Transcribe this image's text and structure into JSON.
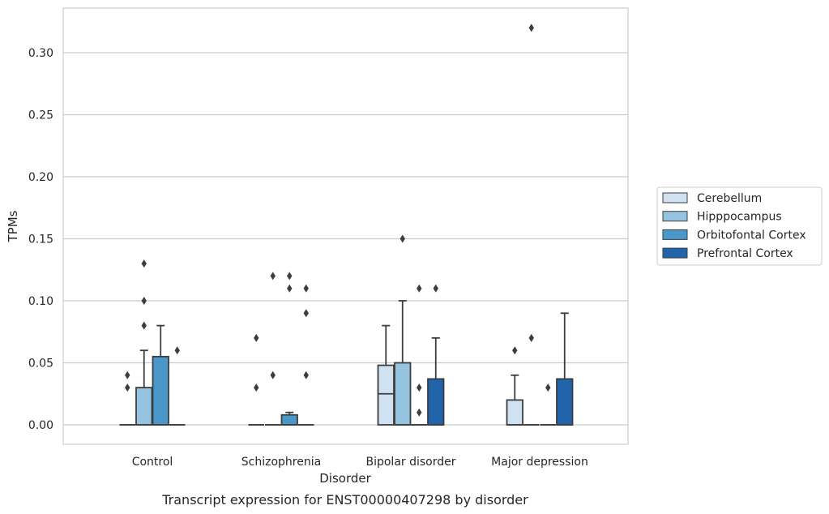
{
  "chart_data": {
    "type": "boxplot",
    "caption": "Transcript expression for ENST00000407298 by disorder",
    "xlabel": "Disorder",
    "ylabel": "TPMs",
    "ylim": [
      -0.016,
      0.337
    ],
    "yticks": [
      "0.00",
      "0.05",
      "0.10",
      "0.15",
      "0.20",
      "0.25",
      "0.30"
    ],
    "ytick_values": [
      0,
      0.05,
      0.1,
      0.15,
      0.2,
      0.25,
      0.3
    ],
    "grid": "horizontal",
    "legend_position": "right",
    "categories": [
      "Control",
      "Schizophrenia",
      "Bipolar disorder",
      "Major depression"
    ],
    "series": [
      {
        "name": "Cerebellum",
        "color": "#d0e1f2",
        "boxes": [
          {
            "q1": 0,
            "median": 0,
            "q3": 0,
            "whisker_low": 0,
            "whisker_high": 0,
            "outliers": [
              0.03,
              0.04
            ]
          },
          {
            "q1": 0,
            "median": 0,
            "q3": 0,
            "whisker_low": 0,
            "whisker_high": 0,
            "outliers": [
              0.03,
              0.07
            ]
          },
          {
            "q1": 0,
            "median": 0.025,
            "q3": 0.048,
            "whisker_low": 0,
            "whisker_high": 0.08,
            "outliers": []
          },
          {
            "q1": 0,
            "median": 0,
            "q3": 0.02,
            "whisker_low": 0,
            "whisker_high": 0.04,
            "outliers": [
              0.06
            ]
          }
        ]
      },
      {
        "name": "Hipppocampus",
        "color": "#94c4df",
        "boxes": [
          {
            "q1": 0,
            "median": 0,
            "q3": 0.03,
            "whisker_low": 0,
            "whisker_high": 0.06,
            "outliers": [
              0.08,
              0.1,
              0.13
            ]
          },
          {
            "q1": 0,
            "median": 0,
            "q3": 0,
            "whisker_low": 0,
            "whisker_high": 0,
            "outliers": [
              0.04,
              0.12
            ]
          },
          {
            "q1": 0,
            "median": 0,
            "q3": 0.05,
            "whisker_low": 0,
            "whisker_high": 0.1,
            "outliers": [
              0.15
            ]
          },
          {
            "q1": 0,
            "median": 0,
            "q3": 0,
            "whisker_low": 0,
            "whisker_high": 0,
            "outliers": [
              0.07,
              0.32
            ]
          }
        ]
      },
      {
        "name": "Orbitofontal Cortex",
        "color": "#4a98c9",
        "boxes": [
          {
            "q1": 0,
            "median": 0,
            "q3": 0.055,
            "whisker_low": 0,
            "whisker_high": 0.08,
            "outliers": []
          },
          {
            "q1": 0,
            "median": 0,
            "q3": 0.008,
            "whisker_low": 0,
            "whisker_high": 0.01,
            "outliers": [
              0.11,
              0.12
            ]
          },
          {
            "q1": 0,
            "median": 0,
            "q3": 0,
            "whisker_low": 0,
            "whisker_high": 0,
            "outliers": [
              0.01,
              0.03,
              0.11
            ]
          },
          {
            "q1": 0,
            "median": 0,
            "q3": 0,
            "whisker_low": 0,
            "whisker_high": 0,
            "outliers": [
              0.03
            ]
          }
        ]
      },
      {
        "name": "Prefrontal Cortex",
        "color": "#2164ab",
        "boxes": [
          {
            "q1": 0,
            "median": 0,
            "q3": 0,
            "whisker_low": 0,
            "whisker_high": 0,
            "outliers": [
              0.06
            ]
          },
          {
            "q1": 0,
            "median": 0,
            "q3": 0,
            "whisker_low": 0,
            "whisker_high": 0,
            "outliers": [
              0.04,
              0.09,
              0.11
            ]
          },
          {
            "q1": 0,
            "median": 0,
            "q3": 0.037,
            "whisker_low": 0,
            "whisker_high": 0.07,
            "outliers": [
              0.11
            ]
          },
          {
            "q1": 0,
            "median": 0,
            "q3": 0.037,
            "whisker_low": 0,
            "whisker_high": 0.09,
            "outliers": []
          }
        ]
      }
    ]
  }
}
